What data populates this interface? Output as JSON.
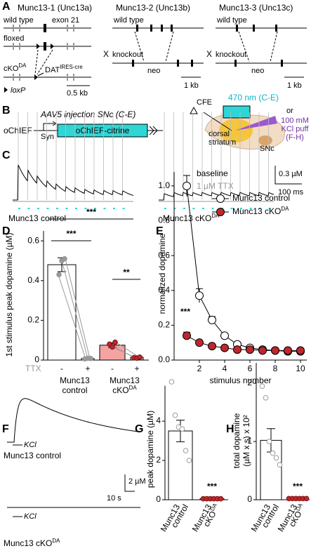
{
  "panel_labels": [
    "A",
    "B",
    "C",
    "D",
    "E",
    "F",
    "G",
    "H"
  ],
  "panel_a": {
    "gene1": {
      "title": "Munc13-1 (Unc13a)",
      "wild_type": "wild type",
      "exon": "exon 21",
      "floxed": "floxed",
      "cko": "cKO",
      "cko_sup": "DA",
      "cre": "DAT",
      "cre_sup": "IRES-cre",
      "loxp": "loxP",
      "scale": "0.5 kb"
    },
    "gene2": {
      "cross": "X",
      "title": "Munc13-2 (Unc13b)",
      "wild_type": "wild type",
      "knockout": "knockout",
      "neo": "neo",
      "scale": "1 kb"
    },
    "gene3": {
      "cross": "X",
      "title": "Munc13-3 (Unc13c)",
      "wild_type": "wild type",
      "knockout": "knockout",
      "neo": "neo",
      "scale": "1 kb"
    }
  },
  "panel_b": {
    "injection": "AAV5 injection SNc (C-E)",
    "promoter_left": "oChIEF",
    "promoter": "Syn",
    "construct": "oChIEF-citrine",
    "cfe": "CFE",
    "light": "470 nm (C-E)",
    "or": "or",
    "kcl": [
      "100 mM",
      "KCl puff",
      "(F-H)"
    ],
    "region": [
      "dorsal",
      "striatum"
    ],
    "snc": "SNc"
  },
  "panel_c": {
    "baseline": "baseline",
    "ttx": "1 µM TTX",
    "scale_y": "0.3 µM",
    "scale_x": "100 ms",
    "control": "Munc13 control",
    "cko": "Munc13 cKO",
    "cko_sup": "DA"
  },
  "panel_f": {
    "kcl": "KCl",
    "control": "Munc13 control",
    "scale_y": "2 µM",
    "scale_x": "10 s",
    "cko_kcl": "KCl",
    "cko": "Munc13 cKO",
    "cko_sup": "DA"
  },
  "chart_data": [
    {
      "type": "bar",
      "ylabel": "1st stimulus peak dopamine (µM)",
      "ylim": [
        0,
        0.65
      ],
      "yticks": [
        0,
        0.2,
        0.4,
        0.6
      ],
      "categories": [
        "-",
        "+",
        "-",
        "+"
      ],
      "factor_label": "TTX",
      "groups": [
        {
          "lines": [
            "Munc13",
            "control"
          ]
        },
        {
          "lines": [
            "Munc13",
            "cKO"
          ],
          "sup": "DA"
        }
      ],
      "values": [
        0.48,
        0.008,
        0.075,
        0.014
      ],
      "errors": [
        0.035,
        0.003,
        0.012,
        0.003
      ],
      "colors": [
        "#ffffff",
        "#ffffff",
        "#f4a3a3",
        "#f4a3a3"
      ],
      "points": [
        [
          0.43,
          0.5,
          0.51
        ],
        [
          0.006,
          0.009,
          0.008
        ],
        [
          0.08,
          0.066,
          0.09
        ],
        [
          0.012,
          0.01,
          0.015
        ]
      ],
      "point_colors": [
        "#999999",
        "#999999",
        "#c0272d",
        "#c0272d"
      ],
      "annotations": [
        "***",
        "***",
        "**"
      ]
    },
    {
      "type": "line",
      "xlabel": "stimulus number",
      "ylabel": "normalized dopamine",
      "x": [
        1,
        2,
        3,
        4,
        5,
        6,
        7,
        8,
        9,
        10
      ],
      "xlim": [
        0,
        10.5
      ],
      "xticks": [
        2,
        4,
        6,
        8,
        10
      ],
      "ylim": [
        0,
        1.08
      ],
      "yticks": [
        {
          "value": 0,
          "label": "0.0"
        },
        0.2,
        0.4,
        0.6,
        0.8,
        {
          "value": 1,
          "label": "1.0"
        }
      ],
      "series": [
        {
          "name": "Munc13 control",
          "color": "#ffffff",
          "values": [
            1.0,
            0.37,
            0.23,
            0.14,
            0.09,
            0.07,
            0.06,
            0.055,
            0.05,
            0.05
          ],
          "errors": [
            0.06,
            0.04,
            0.02,
            0.01,
            0.01,
            0.01,
            0.01,
            0.01,
            0.01,
            0.01
          ]
        },
        {
          "name": "Munc13 cKO",
          "sup": "DA",
          "color": "#c0272d",
          "values": [
            0.14,
            0.1,
            0.08,
            0.07,
            0.06,
            0.06,
            0.055,
            0.055,
            0.055,
            0.055
          ],
          "errors": [
            0.02,
            0.01,
            0.01,
            0.01,
            0.01,
            0.01,
            0.01,
            0.01,
            0.01,
            0.01
          ]
        }
      ],
      "annotations": [
        "***"
      ]
    },
    {
      "type": "bar",
      "ylabel": "peak dopamine (µM)",
      "ylim": [
        0,
        5.8
      ],
      "yticks": [
        0,
        2,
        4
      ],
      "groups": [
        {
          "lines": [
            "Munc13",
            "control"
          ]
        },
        {
          "lines": [
            "Munc13",
            "cKO"
          ],
          "sup": "DA"
        }
      ],
      "values": [
        3.5,
        0.05
      ],
      "errors": [
        0.55,
        0.01
      ],
      "colors": [
        "#ffffff",
        "#f4a3a3"
      ],
      "points": [
        [
          6.0,
          4.3,
          3.7,
          3.6,
          2.5,
          2.0
        ],
        [
          0.05,
          0.05,
          0.05,
          0.05,
          0.05,
          0.05
        ]
      ],
      "point_colors": [
        "#ffffff",
        "#c0272d"
      ],
      "annotations": [
        "***"
      ]
    },
    {
      "type": "bar",
      "ylabel": [
        "total dopamine",
        "(µM x s) x 10²"
      ],
      "ylim": [
        0,
        2.35
      ],
      "yticks": [
        0,
        1,
        2
      ],
      "groups": [
        {
          "lines": [
            "Munc13",
            "control"
          ]
        },
        {
          "lines": [
            "Munc13",
            "cKO"
          ],
          "sup": "DA"
        }
      ],
      "values": [
        1.02,
        0.02
      ],
      "errors": [
        0.2,
        0.005
      ],
      "colors": [
        "#ffffff",
        "#f4a3a3"
      ],
      "points": [
        [
          1.95,
          1.75,
          1.0,
          0.8,
          0.72,
          0.6
        ],
        [
          0.02,
          0.02,
          0.02,
          0.02,
          0.02,
          0.02
        ]
      ],
      "point_colors": [
        "#ffffff",
        "#c0272d"
      ],
      "annotations": [
        "***"
      ]
    }
  ]
}
